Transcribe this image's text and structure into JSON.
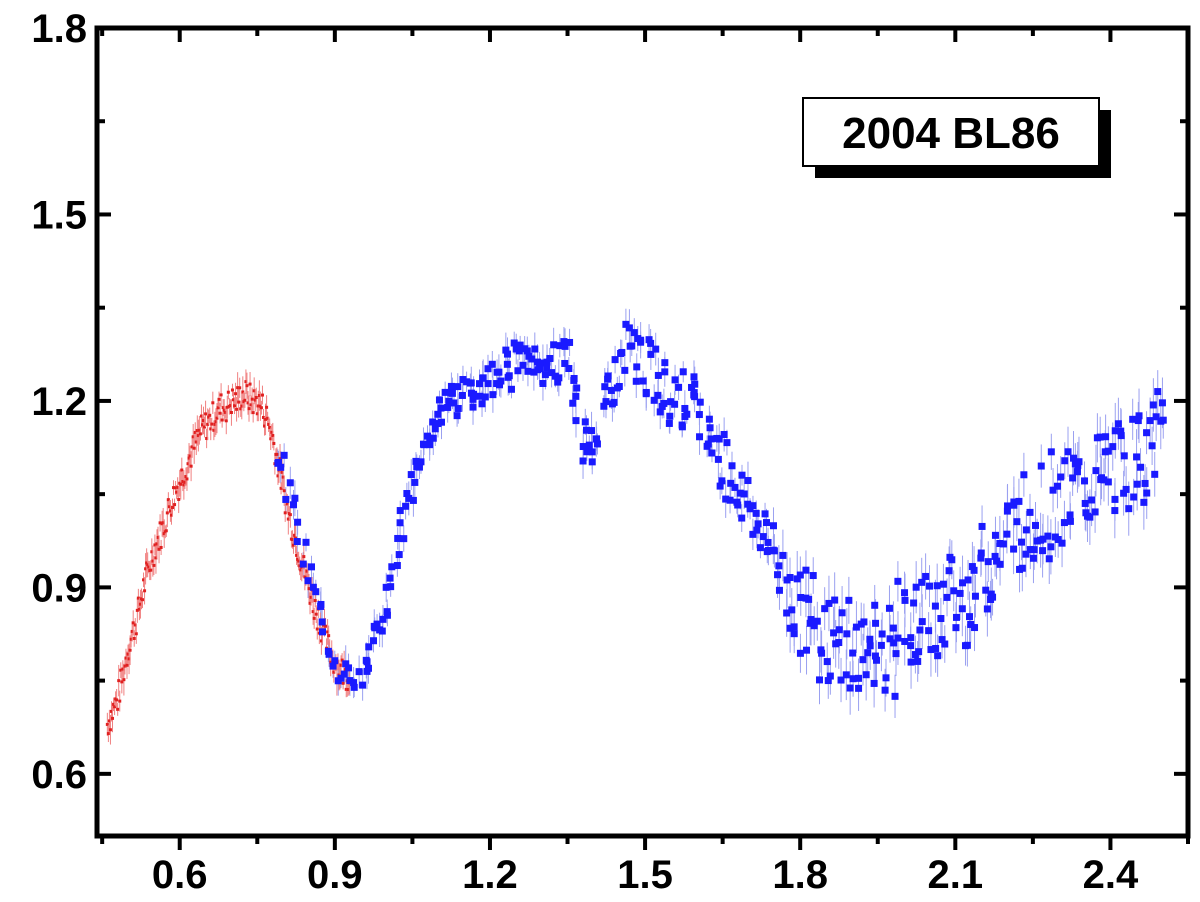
{
  "chart_data": {
    "type": "scatter",
    "title": "",
    "xlabel": "",
    "ylabel": "",
    "xlim": [
      0.44,
      2.55
    ],
    "ylim": [
      0.5,
      1.8
    ],
    "xticks": [
      0.6,
      0.9,
      1.2,
      1.5,
      1.8,
      2.1,
      2.4
    ],
    "xtick_labels": [
      "0.6",
      "0.9",
      "1.2",
      "1.5",
      "1.8",
      "2.1",
      "2.4"
    ],
    "yticks": [
      0.6,
      0.9,
      1.2,
      1.5,
      1.8
    ],
    "ytick_labels": [
      "0.6",
      "0.9",
      "1.2",
      "1.5",
      "1.8"
    ],
    "grid": false,
    "legend_box": {
      "text": "2004 BL86",
      "placement": "top-right"
    },
    "colors": {
      "series_red": "#e02020",
      "series_blue": "#1a1aff",
      "errorbar_blue": "#9aa0f0",
      "axis": "#000000"
    },
    "series": [
      {
        "marker": "small-dot-with-errorbars",
        "color": "#e02020",
        "x_range": [
          0.46,
          0.93
        ],
        "points": [
          [
            0.46,
            0.68
          ],
          [
            0.47,
            0.7
          ],
          [
            0.48,
            0.72
          ],
          [
            0.49,
            0.76
          ],
          [
            0.5,
            0.8
          ],
          [
            0.51,
            0.83
          ],
          [
            0.52,
            0.86
          ],
          [
            0.53,
            0.9
          ],
          [
            0.54,
            0.93
          ],
          [
            0.55,
            0.96
          ],
          [
            0.56,
            0.98
          ],
          [
            0.57,
            1.0
          ],
          [
            0.58,
            1.03
          ],
          [
            0.59,
            1.05
          ],
          [
            0.6,
            1.07
          ],
          [
            0.61,
            1.09
          ],
          [
            0.62,
            1.11
          ],
          [
            0.63,
            1.13
          ],
          [
            0.64,
            1.15
          ],
          [
            0.65,
            1.16
          ],
          [
            0.66,
            1.17
          ],
          [
            0.67,
            1.18
          ],
          [
            0.68,
            1.19
          ],
          [
            0.69,
            1.19
          ],
          [
            0.7,
            1.2
          ],
          [
            0.71,
            1.2
          ],
          [
            0.72,
            1.21
          ],
          [
            0.73,
            1.21
          ],
          [
            0.74,
            1.2
          ],
          [
            0.75,
            1.2
          ],
          [
            0.76,
            1.19
          ],
          [
            0.77,
            1.17
          ],
          [
            0.78,
            1.14
          ],
          [
            0.79,
            1.1
          ],
          [
            0.8,
            1.06
          ],
          [
            0.81,
            1.02
          ],
          [
            0.82,
            0.99
          ],
          [
            0.83,
            0.96
          ],
          [
            0.84,
            0.93
          ],
          [
            0.85,
            0.9
          ],
          [
            0.86,
            0.87
          ],
          [
            0.87,
            0.85
          ],
          [
            0.88,
            0.82
          ],
          [
            0.89,
            0.8
          ],
          [
            0.9,
            0.78
          ],
          [
            0.91,
            0.77
          ],
          [
            0.92,
            0.76
          ],
          [
            0.93,
            0.76
          ]
        ]
      },
      {
        "marker": "filled-square-with-errorbars",
        "color": "#1a1aff",
        "x_range": [
          0.79,
          2.5
        ],
        "points": [
          [
            0.79,
            1.12
          ],
          [
            0.8,
            1.09
          ],
          [
            0.81,
            1.06
          ],
          [
            0.82,
            1.02
          ],
          [
            0.83,
            0.99
          ],
          [
            0.84,
            0.95
          ],
          [
            0.85,
            0.92
          ],
          [
            0.86,
            0.89
          ],
          [
            0.87,
            0.86
          ],
          [
            0.88,
            0.83
          ],
          [
            0.89,
            0.81
          ],
          [
            0.9,
            0.79
          ],
          [
            0.91,
            0.77
          ],
          [
            0.92,
            0.76
          ],
          [
            0.93,
            0.75
          ],
          [
            0.94,
            0.74
          ],
          [
            0.95,
            0.75
          ],
          [
            0.96,
            0.77
          ],
          [
            0.97,
            0.79
          ],
          [
            0.98,
            0.82
          ],
          [
            0.99,
            0.85
          ],
          [
            1.0,
            0.88
          ],
          [
            1.01,
            0.92
          ],
          [
            1.02,
            0.96
          ],
          [
            1.03,
            1.0
          ],
          [
            1.04,
            1.03
          ],
          [
            1.05,
            1.06
          ],
          [
            1.06,
            1.09
          ],
          [
            1.07,
            1.12
          ],
          [
            1.08,
            1.14
          ],
          [
            1.09,
            1.16
          ],
          [
            1.1,
            1.18
          ],
          [
            1.11,
            1.19
          ],
          [
            1.12,
            1.2
          ],
          [
            1.13,
            1.21
          ],
          [
            1.14,
            1.2
          ],
          [
            1.15,
            1.21
          ],
          [
            1.16,
            1.22
          ],
          [
            1.17,
            1.21
          ],
          [
            1.18,
            1.22
          ],
          [
            1.19,
            1.23
          ],
          [
            1.2,
            1.24
          ],
          [
            1.21,
            1.23
          ],
          [
            1.22,
            1.25
          ],
          [
            1.23,
            1.26
          ],
          [
            1.24,
            1.24
          ],
          [
            1.25,
            1.27
          ],
          [
            1.26,
            1.28
          ],
          [
            1.27,
            1.26
          ],
          [
            1.28,
            1.25
          ],
          [
            1.29,
            1.27
          ],
          [
            1.3,
            1.24
          ],
          [
            1.31,
            1.26
          ],
          [
            1.32,
            1.27
          ],
          [
            1.33,
            1.25
          ],
          [
            1.34,
            1.28
          ],
          [
            1.35,
            1.27
          ],
          [
            1.36,
            1.22
          ],
          [
            1.37,
            1.18
          ],
          [
            1.38,
            1.14
          ],
          [
            1.39,
            1.12
          ],
          [
            1.4,
            1.15
          ],
          [
            1.41,
            1.17
          ],
          [
            1.42,
            1.19
          ],
          [
            1.43,
            1.22
          ],
          [
            1.44,
            1.24
          ],
          [
            1.45,
            1.26
          ],
          [
            1.46,
            1.28
          ],
          [
            1.47,
            1.29
          ],
          [
            1.48,
            1.28
          ],
          [
            1.49,
            1.27
          ],
          [
            1.5,
            1.26
          ],
          [
            1.51,
            1.25
          ],
          [
            1.52,
            1.24
          ],
          [
            1.53,
            1.23
          ],
          [
            1.54,
            1.22
          ],
          [
            1.55,
            1.21
          ],
          [
            1.56,
            1.22
          ],
          [
            1.57,
            1.2
          ],
          [
            1.58,
            1.21
          ],
          [
            1.59,
            1.19
          ],
          [
            1.6,
            1.18
          ],
          [
            1.61,
            1.17
          ],
          [
            1.62,
            1.15
          ],
          [
            1.63,
            1.14
          ],
          [
            1.64,
            1.12
          ],
          [
            1.65,
            1.11
          ],
          [
            1.66,
            1.09
          ],
          [
            1.67,
            1.08
          ],
          [
            1.68,
            1.06
          ],
          [
            1.69,
            1.05
          ],
          [
            1.7,
            1.04
          ],
          [
            1.71,
            1.02
          ],
          [
            1.72,
            1.0
          ],
          [
            1.73,
            0.99
          ],
          [
            1.74,
            0.97
          ],
          [
            1.75,
            0.95
          ],
          [
            1.76,
            0.93
          ],
          [
            1.77,
            0.92
          ],
          [
            1.78,
            0.9
          ],
          [
            1.79,
            0.88
          ],
          [
            1.8,
            0.87
          ],
          [
            1.81,
            0.86
          ],
          [
            1.82,
            0.85
          ],
          [
            1.83,
            0.84
          ],
          [
            1.84,
            0.83
          ],
          [
            1.85,
            0.82
          ],
          [
            1.86,
            0.83
          ],
          [
            1.87,
            0.81
          ],
          [
            1.88,
            0.8
          ],
          [
            1.89,
            0.82
          ],
          [
            1.9,
            0.79
          ],
          [
            1.91,
            0.81
          ],
          [
            1.92,
            0.8
          ],
          [
            1.93,
            0.82
          ],
          [
            1.94,
            0.8
          ],
          [
            1.95,
            0.79
          ],
          [
            1.96,
            0.81
          ],
          [
            1.97,
            0.82
          ],
          [
            1.98,
            0.8
          ],
          [
            1.99,
            0.83
          ],
          [
            2.0,
            0.82
          ],
          [
            2.01,
            0.84
          ],
          [
            2.02,
            0.83
          ],
          [
            2.03,
            0.85
          ],
          [
            2.04,
            0.84
          ],
          [
            2.05,
            0.86
          ],
          [
            2.06,
            0.85
          ],
          [
            2.07,
            0.87
          ],
          [
            2.08,
            0.86
          ],
          [
            2.09,
            0.88
          ],
          [
            2.1,
            0.87
          ],
          [
            2.11,
            0.89
          ],
          [
            2.12,
            0.88
          ],
          [
            2.13,
            0.9
          ],
          [
            2.14,
            0.91
          ],
          [
            2.15,
            0.92
          ],
          [
            2.16,
            0.93
          ],
          [
            2.17,
            0.94
          ],
          [
            2.18,
            0.95
          ],
          [
            2.19,
            0.97
          ],
          [
            2.2,
            0.98
          ],
          [
            2.21,
            0.99
          ],
          [
            2.22,
            1.0
          ],
          [
            2.23,
            1.01
          ],
          [
            2.24,
            1.0
          ],
          [
            2.25,
            1.02
          ],
          [
            2.26,
            1.01
          ],
          [
            2.27,
            1.03
          ],
          [
            2.28,
            1.02
          ],
          [
            2.29,
            1.04
          ],
          [
            2.3,
            1.03
          ],
          [
            2.31,
            1.05
          ],
          [
            2.32,
            1.04
          ],
          [
            2.33,
            1.06
          ],
          [
            2.34,
            1.05
          ],
          [
            2.35,
            1.07
          ],
          [
            2.36,
            1.06
          ],
          [
            2.37,
            1.08
          ],
          [
            2.38,
            1.07
          ],
          [
            2.39,
            1.09
          ],
          [
            2.4,
            1.08
          ],
          [
            2.41,
            1.1
          ],
          [
            2.42,
            1.09
          ],
          [
            2.43,
            1.11
          ],
          [
            2.44,
            1.1
          ],
          [
            2.45,
            1.12
          ],
          [
            2.46,
            1.11
          ],
          [
            2.47,
            1.13
          ],
          [
            2.48,
            1.12
          ],
          [
            2.49,
            1.14
          ],
          [
            2.5,
            1.15
          ]
        ]
      }
    ]
  }
}
